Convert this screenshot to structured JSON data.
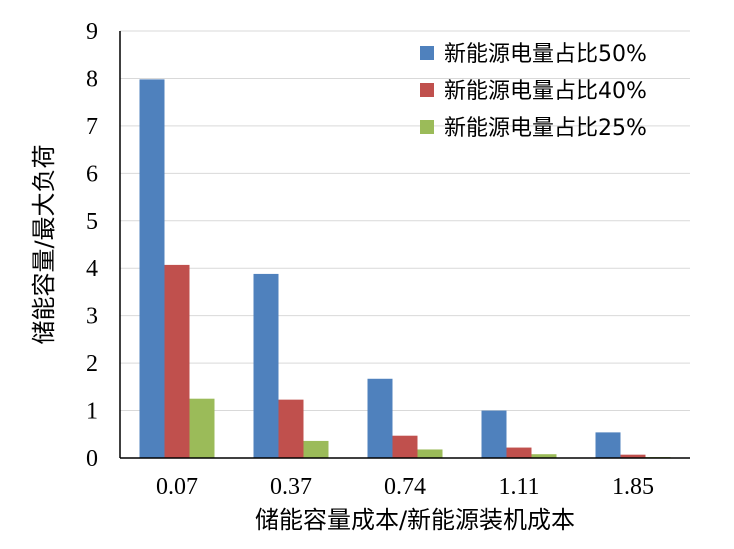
{
  "chart_data": {
    "type": "bar",
    "title": "",
    "xlabel": "储能容量成本/新能源装机成本",
    "ylabel": "储能容量/最大负荷",
    "categories": [
      "0.07",
      "0.37",
      "0.74",
      "1.11",
      "1.85"
    ],
    "series": [
      {
        "name": "新能源电量占比50%",
        "values": [
          7.98,
          3.88,
          1.67,
          1.0,
          0.54
        ],
        "color": "#4f81bd"
      },
      {
        "name": "新能源电量占比40%",
        "values": [
          4.07,
          1.23,
          0.47,
          0.22,
          0.07
        ],
        "color": "#c0504d"
      },
      {
        "name": "新能源电量占比25%",
        "values": [
          1.25,
          0.36,
          0.18,
          0.08,
          0.02
        ],
        "color": "#9bbb59"
      }
    ],
    "ylim": [
      0,
      9
    ],
    "yticks": [
      0,
      1,
      2,
      3,
      4,
      5,
      6,
      7,
      8,
      9
    ],
    "grid": true,
    "legend_position": "top-right"
  }
}
